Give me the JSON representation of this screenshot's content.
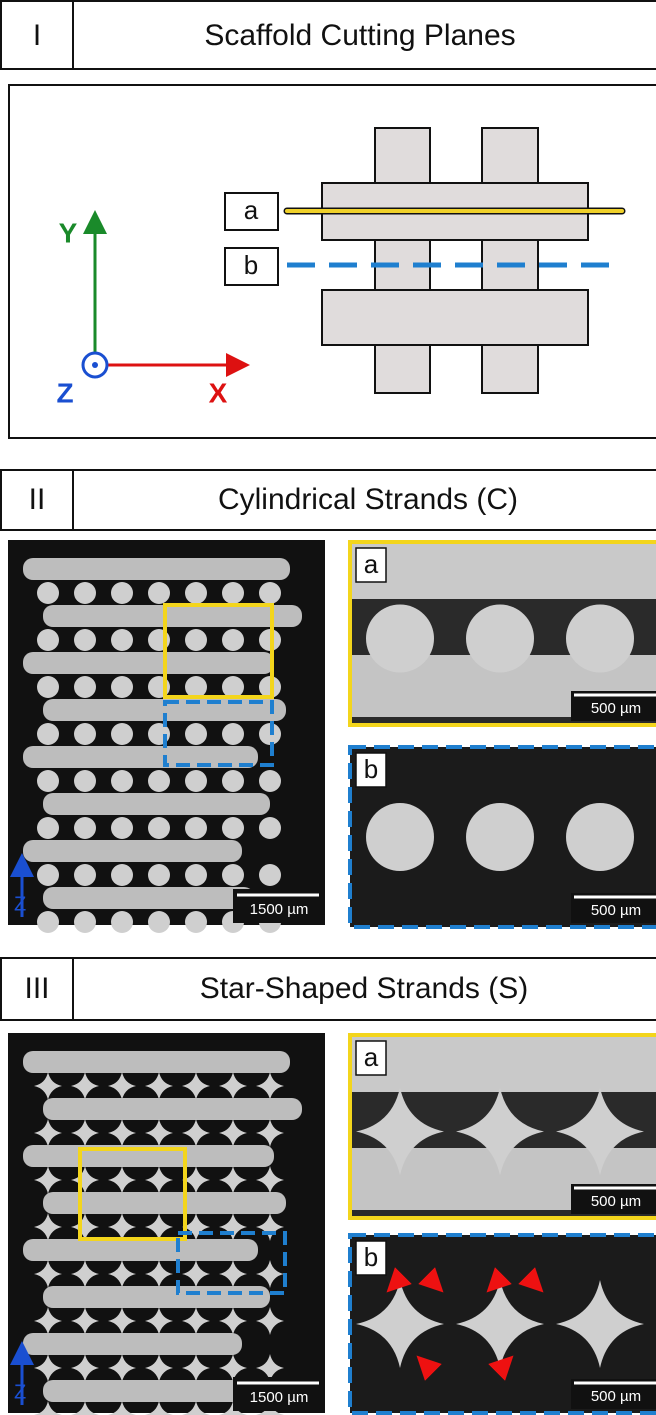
{
  "sections": [
    {
      "numeral": "I",
      "title": "Scaffold Cutting Planes",
      "planes": [
        "a",
        "b"
      ],
      "axes": {
        "y": "Y",
        "z": "Z",
        "x": "X"
      }
    },
    {
      "numeral": "II",
      "title": "Cylindrical Strands (C)",
      "overview": {
        "axis": "Z",
        "scale": "1500 µm"
      },
      "insets": [
        {
          "label": "a",
          "scale": "500 µm"
        },
        {
          "label": "b",
          "scale": "500 µm"
        }
      ]
    },
    {
      "numeral": "III",
      "title": "Star-Shaped Strands (S)",
      "overview": {
        "axis": "Z",
        "scale": "1500 µm"
      },
      "insets": [
        {
          "label": "a",
          "scale": "500 µm"
        },
        {
          "label": "b",
          "scale": "500 µm"
        }
      ]
    }
  ]
}
